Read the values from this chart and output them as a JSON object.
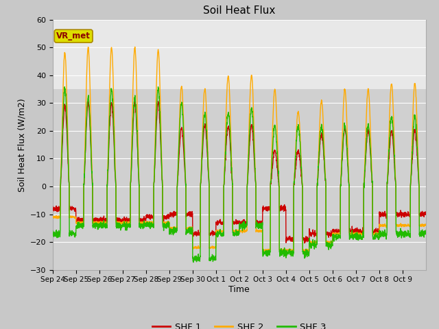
{
  "title": "Soil Heat Flux",
  "ylabel": "Soil Heat Flux (W/m2)",
  "xlabel": "Time",
  "ylim": [
    -30,
    60
  ],
  "yticks": [
    -30,
    -20,
    -10,
    0,
    10,
    20,
    30,
    40,
    50,
    60
  ],
  "fig_bg": "#c8c8c8",
  "plot_bg_lower": "#d0d0d0",
  "plot_bg_upper": "#e8e8e8",
  "shf1_color": "#cc0000",
  "shf2_color": "#ffaa00",
  "shf3_color": "#22bb00",
  "legend_box_text": "VR_met",
  "xticklabels": [
    "Sep 24",
    "Sep 25",
    "Sep 26",
    "Sep 27",
    "Sep 28",
    "Sep 29",
    "Sep 30",
    "Oct 1",
    "Oct 2",
    "Oct 3",
    "Oct 4",
    "Oct 5",
    "Oct 6",
    "Oct 7",
    "Oct 8",
    "Oct 9"
  ],
  "line_width": 1.0,
  "n_days": 16,
  "shf1_legend": "SHF 1",
  "shf2_legend": "SHF 2",
  "shf3_legend": "SHF 3",
  "grid_color": "#ffffff",
  "figsize": [
    6.4,
    4.8
  ],
  "dpi": 100
}
